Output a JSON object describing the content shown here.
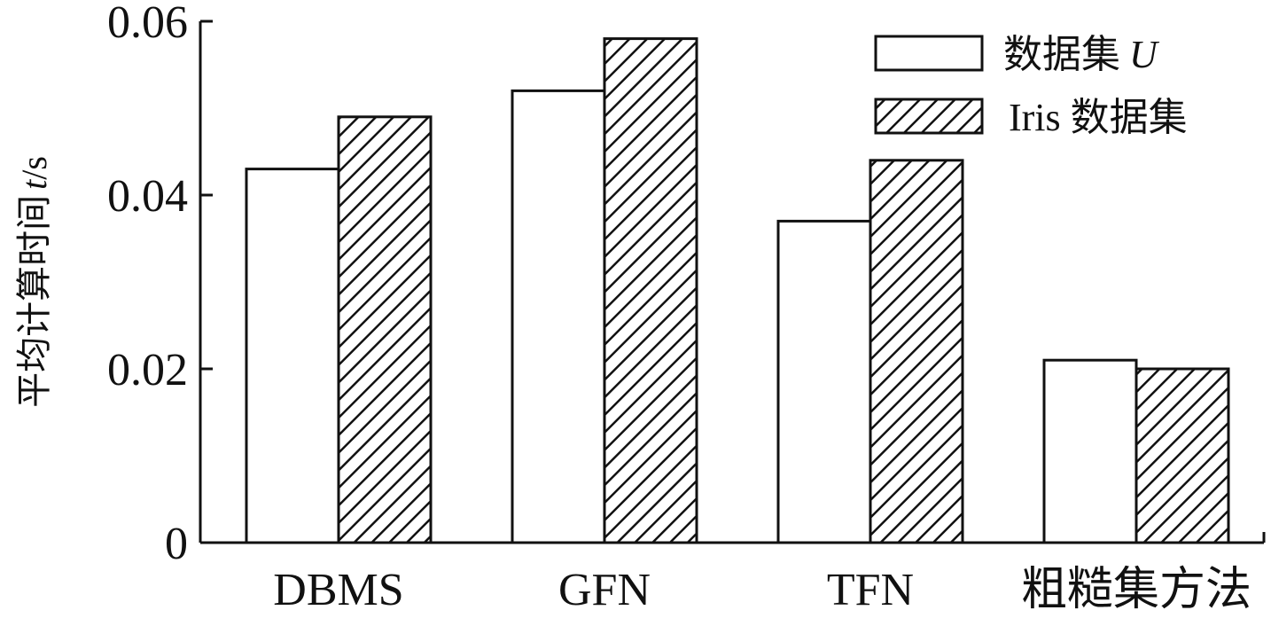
{
  "chart_data": {
    "type": "bar",
    "title": "",
    "xlabel": "",
    "ylabel": "平均计算时间",
    "ylabel_var": "t",
    "ylabel_unit": "/s",
    "categories": [
      "DBMS",
      "GFN",
      "TFN",
      "粗糙集方法"
    ],
    "series": [
      {
        "name": "数据集",
        "name_var": "U",
        "values": [
          0.043,
          0.052,
          0.037,
          0.021
        ],
        "fill": "#ffffff",
        "pattern": "none"
      },
      {
        "name": "Iris 数据集",
        "values": [
          0.049,
          0.058,
          0.044,
          0.02
        ],
        "fill": "#ffffff",
        "pattern": "diagonal-hatch"
      }
    ],
    "ylim": [
      0,
      0.06
    ],
    "yticks": [
      0,
      0.02,
      0.04,
      0.06
    ],
    "ytick_labels": [
      "0",
      "0.02",
      "0.04",
      "0.06"
    ],
    "grid": false,
    "legend_position": "top-right",
    "colors": {
      "stroke": "#111111",
      "background": "#ffffff"
    }
  }
}
